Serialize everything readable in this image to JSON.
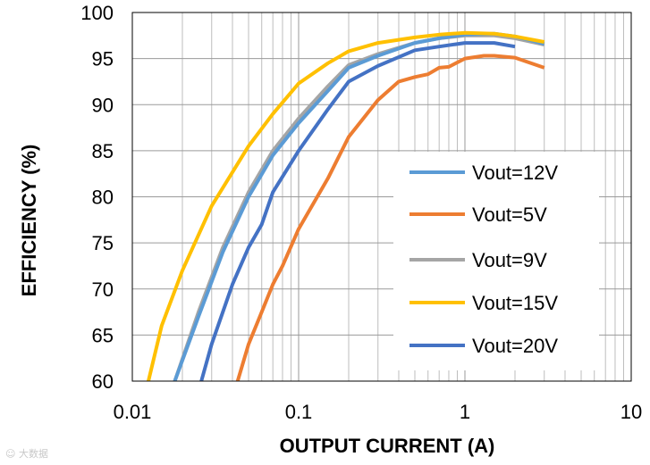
{
  "chart_data": {
    "type": "line",
    "xlabel": "OUTPUT  CURRENT  (A)",
    "ylabel": "EFFICIENCY   (%)",
    "xscale": "log",
    "xlim": [
      0.01,
      10
    ],
    "ylim": [
      60,
      100
    ],
    "x_ticks": [
      "0.01",
      "0.1",
      "1",
      "10"
    ],
    "y_ticks": [
      "60",
      "65",
      "70",
      "75",
      "80",
      "85",
      "90",
      "95",
      "100"
    ],
    "grid": true,
    "legend_position": "right-center",
    "series": [
      {
        "name": "Vout=12V",
        "color": "#5b9bd5",
        "points": [
          [
            0.018,
            60
          ],
          [
            0.025,
            67
          ],
          [
            0.035,
            74
          ],
          [
            0.05,
            80
          ],
          [
            0.07,
            84.5
          ],
          [
            0.1,
            88
          ],
          [
            0.15,
            91.5
          ],
          [
            0.2,
            94
          ],
          [
            0.3,
            95.3
          ],
          [
            0.5,
            96.7
          ],
          [
            0.7,
            97.2
          ],
          [
            1,
            97.6
          ],
          [
            1.5,
            97.7
          ],
          [
            2,
            97.4
          ],
          [
            3,
            96.6
          ]
        ]
      },
      {
        "name": "Vout=5V",
        "color": "#ed7d31",
        "points": [
          [
            0.043,
            60
          ],
          [
            0.05,
            64
          ],
          [
            0.06,
            67.5
          ],
          [
            0.07,
            70.5
          ],
          [
            0.08,
            72.5
          ],
          [
            0.1,
            76.5
          ],
          [
            0.15,
            82
          ],
          [
            0.2,
            86.5
          ],
          [
            0.3,
            90.5
          ],
          [
            0.4,
            92.5
          ],
          [
            0.5,
            93
          ],
          [
            0.6,
            93.3
          ],
          [
            0.7,
            94
          ],
          [
            0.8,
            94.1
          ],
          [
            1,
            95
          ],
          [
            1.3,
            95.3
          ],
          [
            1.5,
            95.3
          ],
          [
            2,
            95.1
          ],
          [
            3,
            94
          ]
        ]
      },
      {
        "name": "Vout=9V",
        "color": "#a5a5a5",
        "points": [
          [
            0.018,
            60
          ],
          [
            0.025,
            67.5
          ],
          [
            0.035,
            74.5
          ],
          [
            0.05,
            80.5
          ],
          [
            0.07,
            85
          ],
          [
            0.1,
            88.5
          ],
          [
            0.15,
            92
          ],
          [
            0.2,
            94.3
          ],
          [
            0.3,
            95.5
          ],
          [
            0.5,
            96.7
          ],
          [
            0.7,
            97.2
          ],
          [
            1,
            97.5
          ],
          [
            1.5,
            97.5
          ],
          [
            2,
            97.2
          ],
          [
            3,
            96.5
          ]
        ]
      },
      {
        "name": "Vout=15V",
        "color": "#ffc000",
        "points": [
          [
            0.0125,
            60
          ],
          [
            0.015,
            66
          ],
          [
            0.02,
            72
          ],
          [
            0.03,
            79
          ],
          [
            0.05,
            85.5
          ],
          [
            0.07,
            89
          ],
          [
            0.1,
            92.3
          ],
          [
            0.15,
            94.5
          ],
          [
            0.2,
            95.8
          ],
          [
            0.3,
            96.7
          ],
          [
            0.5,
            97.3
          ],
          [
            0.7,
            97.6
          ],
          [
            1,
            97.8
          ],
          [
            1.5,
            97.7
          ],
          [
            2,
            97.4
          ],
          [
            3,
            96.8
          ]
        ]
      },
      {
        "name": "Vout=20V",
        "color": "#4472c4",
        "points": [
          [
            0.026,
            60
          ],
          [
            0.03,
            64
          ],
          [
            0.04,
            70.5
          ],
          [
            0.05,
            74.5
          ],
          [
            0.06,
            77
          ],
          [
            0.07,
            80.5
          ],
          [
            0.1,
            85
          ],
          [
            0.15,
            89.5
          ],
          [
            0.2,
            92.5
          ],
          [
            0.3,
            94.2
          ],
          [
            0.5,
            95.9
          ],
          [
            0.7,
            96.3
          ],
          [
            1,
            96.7
          ],
          [
            1.5,
            96.7
          ],
          [
            2,
            96.3
          ]
        ]
      }
    ]
  }
}
